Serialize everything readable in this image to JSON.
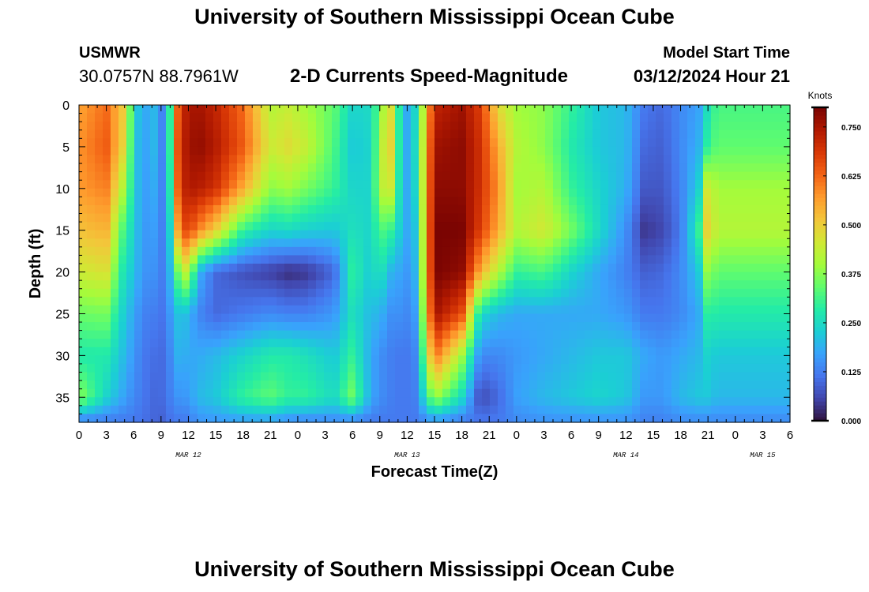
{
  "header": {
    "title": "University of Southern Mississippi Ocean Cube",
    "station": "USMWR",
    "coordinates": "30.0757N  88.7961W",
    "subtitle": "2-D Currents Speed-Magnitude",
    "model_start_label": "Model Start Time",
    "model_start_value": "03/12/2024 Hour 21"
  },
  "footer": {
    "title": "University of Southern Mississippi Ocean Cube"
  },
  "chart_data": {
    "type": "heatmap",
    "title": "2-D Currents Speed-Magnitude",
    "xlabel": "Forecast Time(Z)",
    "ylabel": "Depth (ft)",
    "x_ticks": [
      "0",
      "3",
      "6",
      "9",
      "12",
      "15",
      "18",
      "21",
      "0",
      "3",
      "6",
      "9",
      "12",
      "15",
      "18",
      "21",
      "0",
      "3",
      "6",
      "9",
      "12",
      "15",
      "18",
      "21",
      "0",
      "3",
      "6"
    ],
    "date_labels": [
      {
        "label": "MAR 12",
        "at_tick": 4
      },
      {
        "label": "MAR 13",
        "at_tick": 12
      },
      {
        "label": "MAR 14",
        "at_tick": 20
      },
      {
        "label": "MAR 15",
        "at_tick": 25
      }
    ],
    "y_ticks": [
      0,
      5,
      10,
      15,
      20,
      25,
      30,
      35
    ],
    "ylim": [
      0,
      38
    ],
    "xlim_hours": [
      0,
      78
    ],
    "colorbar": {
      "label": "Knots",
      "min": 0.0,
      "max": 0.8,
      "ticks": [
        "0.000",
        "0.125",
        "0.250",
        "0.375",
        "0.500",
        "0.625",
        "0.750"
      ]
    },
    "colormap": [
      "#30123b",
      "#4145ab",
      "#4675ed",
      "#39a2fc",
      "#1bcfd4",
      "#24eca6",
      "#61fc6c",
      "#a4fc3b",
      "#d1e834",
      "#f3c63a",
      "#fe9b2d",
      "#f36315",
      "#d93806",
      "#b11901",
      "#7a0402"
    ],
    "anchors": [
      {
        "t": 0,
        "v": [
          0.56,
          0.58,
          0.57,
          0.52,
          0.45,
          0.35,
          0.28,
          0.38,
          0.12
        ]
      },
      {
        "t": 3,
        "v": [
          0.62,
          0.64,
          0.6,
          0.54,
          0.47,
          0.36,
          0.28,
          0.24,
          0.12
        ]
      },
      {
        "t": 5,
        "v": [
          0.5,
          0.48,
          0.4,
          0.3,
          0.25,
          0.22,
          0.2,
          0.17,
          0.12
        ]
      },
      {
        "t": 6,
        "v": [
          0.27,
          0.25,
          0.25,
          0.24,
          0.22,
          0.18,
          0.16,
          0.14,
          0.12
        ]
      },
      {
        "t": 7,
        "v": [
          0.16,
          0.15,
          0.15,
          0.15,
          0.15,
          0.13,
          0.12,
          0.12,
          0.11
        ]
      },
      {
        "t": 8,
        "v": [
          0.22,
          0.22,
          0.2,
          0.18,
          0.16,
          0.13,
          0.11,
          0.1,
          0.1
        ]
      },
      {
        "t": 9,
        "v": [
          0.12,
          0.12,
          0.12,
          0.12,
          0.12,
          0.11,
          0.1,
          0.1,
          0.09
        ]
      },
      {
        "t": 10,
        "v": [
          0.3,
          0.3,
          0.28,
          0.24,
          0.2,
          0.16,
          0.14,
          0.13,
          0.11
        ]
      },
      {
        "t": 11,
        "v": [
          0.7,
          0.72,
          0.7,
          0.62,
          0.38,
          0.22,
          0.2,
          0.16,
          0.12
        ]
      },
      {
        "t": 12,
        "v": [
          0.74,
          0.75,
          0.74,
          0.68,
          0.45,
          0.2,
          0.18,
          0.16,
          0.12
        ]
      },
      {
        "t": 13,
        "v": [
          0.76,
          0.78,
          0.74,
          0.6,
          0.2,
          0.14,
          0.18,
          0.2,
          0.15
        ]
      },
      {
        "t": 15,
        "v": [
          0.72,
          0.74,
          0.7,
          0.5,
          0.1,
          0.1,
          0.2,
          0.22,
          0.16
        ]
      },
      {
        "t": 18,
        "v": [
          0.62,
          0.64,
          0.55,
          0.3,
          0.07,
          0.12,
          0.24,
          0.3,
          0.16
        ]
      },
      {
        "t": 21,
        "v": [
          0.42,
          0.45,
          0.38,
          0.24,
          0.05,
          0.14,
          0.28,
          0.34,
          0.16
        ]
      },
      {
        "t": 23,
        "v": [
          0.44,
          0.48,
          0.4,
          0.25,
          0.03,
          0.13,
          0.28,
          0.3,
          0.14
        ]
      },
      {
        "t": 25,
        "v": [
          0.4,
          0.44,
          0.36,
          0.23,
          0.04,
          0.13,
          0.26,
          0.3,
          0.13
        ]
      },
      {
        "t": 28,
        "v": [
          0.34,
          0.32,
          0.3,
          0.22,
          0.1,
          0.16,
          0.22,
          0.25,
          0.14
        ]
      },
      {
        "t": 30,
        "v": [
          0.24,
          0.22,
          0.24,
          0.26,
          0.3,
          0.26,
          0.3,
          0.36,
          0.13
        ]
      },
      {
        "t": 32,
        "v": [
          0.25,
          0.24,
          0.24,
          0.24,
          0.22,
          0.2,
          0.18,
          0.18,
          0.12
        ]
      },
      {
        "t": 33,
        "v": [
          0.35,
          0.38,
          0.4,
          0.32,
          0.28,
          0.2,
          0.15,
          0.15,
          0.12
        ]
      },
      {
        "t": 34,
        "v": [
          0.52,
          0.55,
          0.5,
          0.32,
          0.2,
          0.15,
          0.13,
          0.13,
          0.12
        ]
      },
      {
        "t": 35,
        "v": [
          0.3,
          0.3,
          0.28,
          0.24,
          0.18,
          0.15,
          0.12,
          0.12,
          0.12
        ]
      },
      {
        "t": 36,
        "v": [
          0.18,
          0.18,
          0.18,
          0.18,
          0.16,
          0.14,
          0.12,
          0.12,
          0.12
        ]
      },
      {
        "t": 37,
        "v": [
          0.25,
          0.26,
          0.25,
          0.22,
          0.2,
          0.17,
          0.14,
          0.13,
          0.12
        ]
      },
      {
        "t": 39,
        "v": [
          0.72,
          0.76,
          0.78,
          0.8,
          0.8,
          0.76,
          0.62,
          0.4,
          0.15
        ]
      },
      {
        "t": 42,
        "v": [
          0.76,
          0.78,
          0.78,
          0.8,
          0.78,
          0.66,
          0.4,
          0.25,
          0.12
        ]
      },
      {
        "t": 44,
        "v": [
          0.68,
          0.7,
          0.7,
          0.68,
          0.55,
          0.25,
          0.14,
          0.06,
          0.12
        ]
      },
      {
        "t": 46,
        "v": [
          0.48,
          0.55,
          0.58,
          0.55,
          0.42,
          0.2,
          0.14,
          0.1,
          0.12
        ]
      },
      {
        "t": 48,
        "v": [
          0.4,
          0.42,
          0.4,
          0.42,
          0.3,
          0.18,
          0.16,
          0.17,
          0.14
        ]
      },
      {
        "t": 51,
        "v": [
          0.38,
          0.38,
          0.42,
          0.46,
          0.32,
          0.18,
          0.18,
          0.2,
          0.15
        ]
      },
      {
        "t": 54,
        "v": [
          0.3,
          0.28,
          0.3,
          0.36,
          0.24,
          0.18,
          0.2,
          0.22,
          0.15
        ]
      },
      {
        "t": 57,
        "v": [
          0.22,
          0.22,
          0.24,
          0.25,
          0.18,
          0.18,
          0.22,
          0.24,
          0.15
        ]
      },
      {
        "t": 60,
        "v": [
          0.2,
          0.2,
          0.19,
          0.15,
          0.13,
          0.16,
          0.22,
          0.22,
          0.15
        ]
      },
      {
        "t": 62,
        "v": [
          0.12,
          0.1,
          0.08,
          0.04,
          0.09,
          0.12,
          0.18,
          0.16,
          0.13
        ]
      },
      {
        "t": 64,
        "v": [
          0.1,
          0.09,
          0.08,
          0.06,
          0.1,
          0.12,
          0.16,
          0.16,
          0.13
        ]
      },
      {
        "t": 66,
        "v": [
          0.14,
          0.14,
          0.13,
          0.12,
          0.14,
          0.14,
          0.18,
          0.2,
          0.14
        ]
      },
      {
        "t": 68,
        "v": [
          0.17,
          0.19,
          0.23,
          0.3,
          0.22,
          0.18,
          0.2,
          0.22,
          0.14
        ]
      },
      {
        "t": 69,
        "v": [
          0.26,
          0.3,
          0.48,
          0.52,
          0.4,
          0.3,
          0.24,
          0.22,
          0.14
        ]
      },
      {
        "t": 70,
        "v": [
          0.32,
          0.34,
          0.4,
          0.42,
          0.34,
          0.28,
          0.22,
          0.2,
          0.14
        ]
      }
    ],
    "anchor_depths": [
      0,
      5,
      10,
      15,
      20,
      25,
      30,
      35,
      38
    ]
  }
}
